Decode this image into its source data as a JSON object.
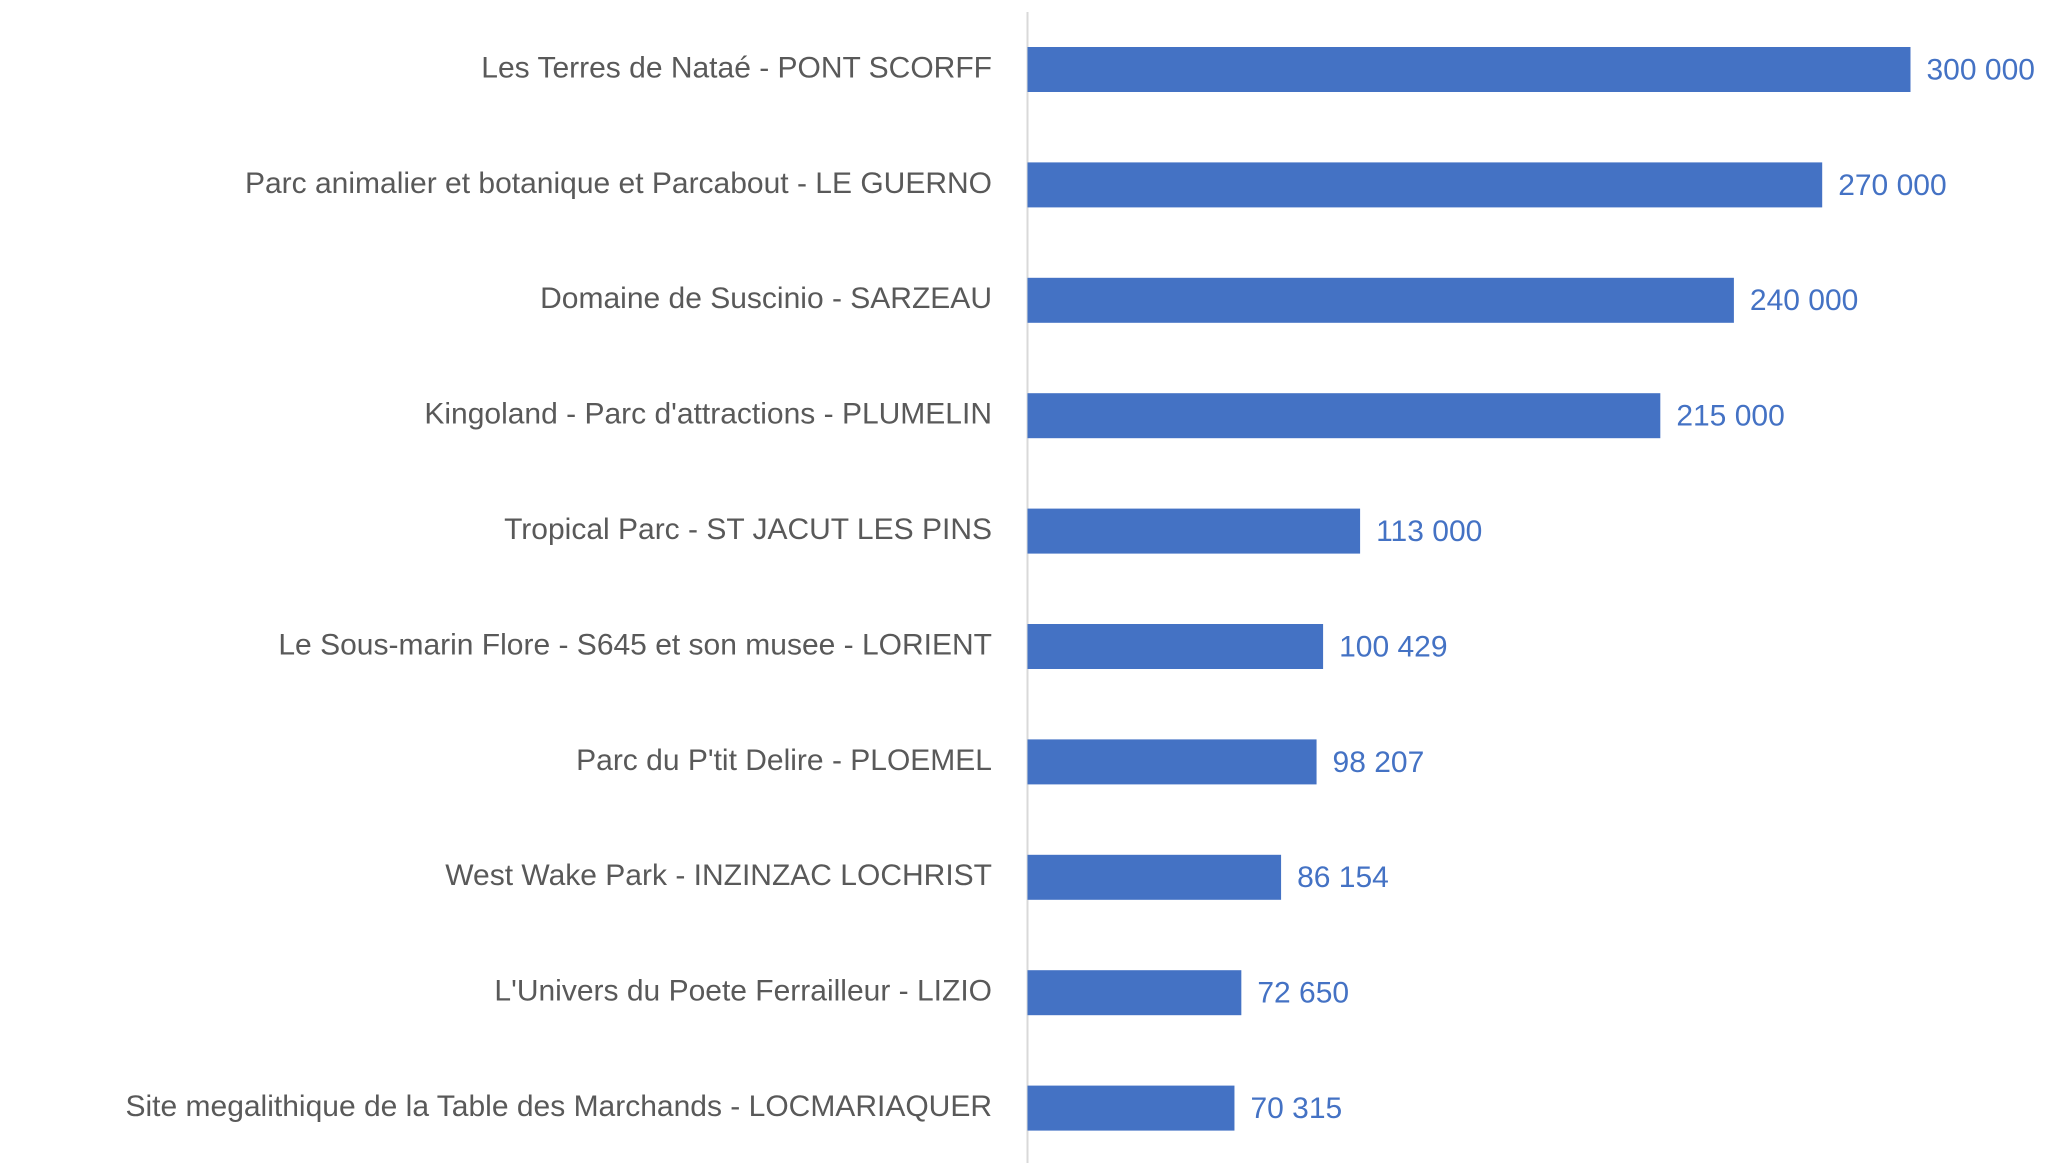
{
  "chart_data": {
    "type": "bar",
    "orientation": "horizontal",
    "categories": [
      "Les Terres de Nataé  -  PONT SCORFF",
      "Parc animalier et botanique et Parcabout  -  LE GUERNO",
      "Domaine de Suscinio - SARZEAU",
      "Kingoland - Parc d'attractions  -  PLUMELIN",
      "Tropical Parc  -  ST JACUT LES PINS",
      "Le Sous-marin Flore - S645 et son musee  -  LORIENT",
      "Parc du P'tit Delire  -  PLOEMEL",
      "West Wake Park  -  INZINZAC LOCHRIST",
      "L'Univers du Poete Ferrailleur  -  LIZIO",
      "Site megalithique de la Table des Marchands  -  LOCMARIAQUER"
    ],
    "values": [
      300000,
      270000,
      240000,
      215000,
      113000,
      100429,
      98207,
      86154,
      72650,
      70315
    ],
    "value_labels": [
      "300 000",
      "270 000",
      "240 000",
      "215 000",
      "113 000",
      "100 429",
      "98 207",
      "86 154",
      "72 650",
      "70 315"
    ],
    "color": "#4472c4"
  }
}
